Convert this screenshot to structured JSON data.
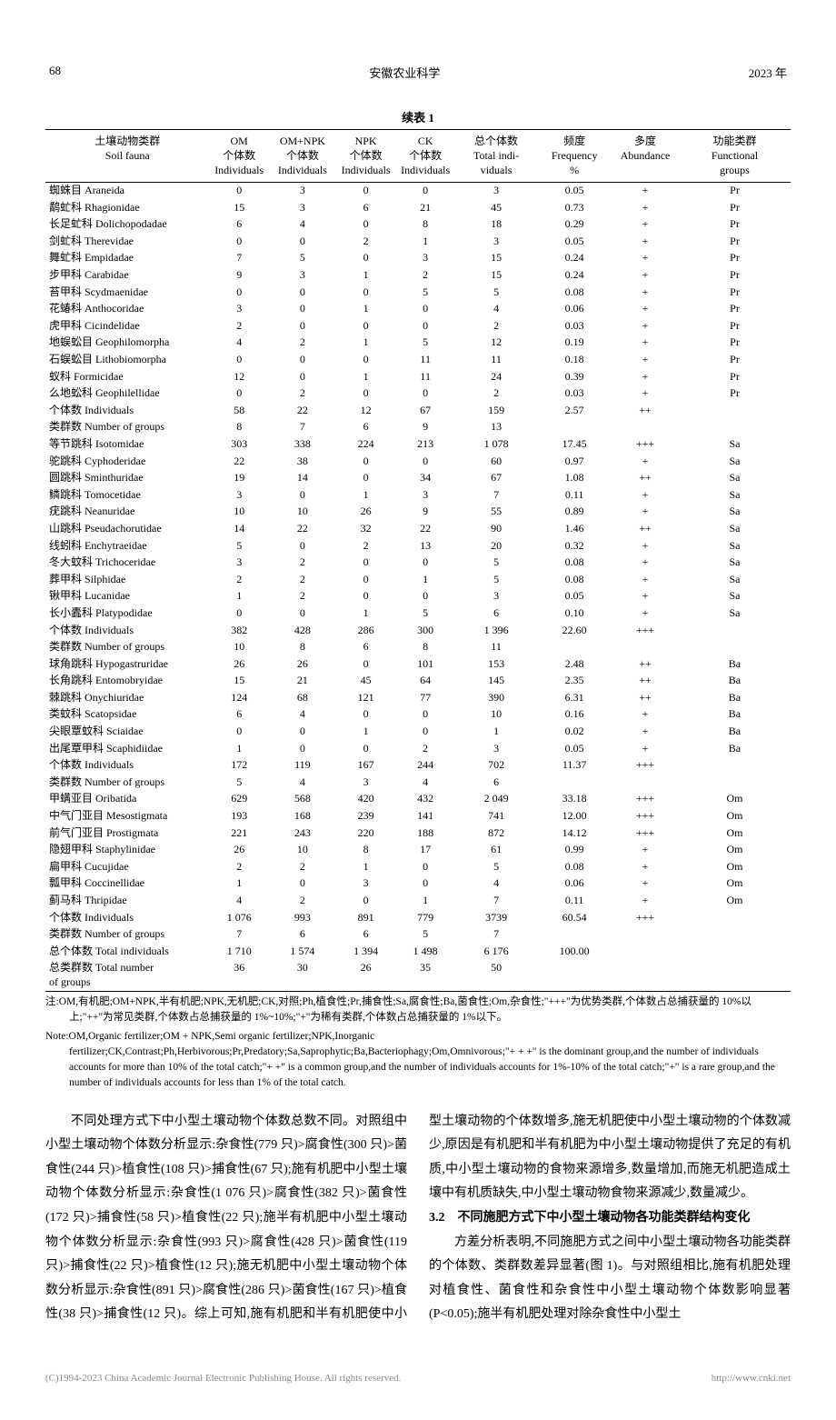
{
  "header": {
    "page_number": "68",
    "journal": "安徽农业科学",
    "year": "2023 年"
  },
  "table": {
    "title": "续表 1",
    "columns": [
      {
        "cn": "土壤动物类群",
        "en": "Soil fauna"
      },
      {
        "cn": "OM",
        "sub": "个体数",
        "en": "Individuals"
      },
      {
        "cn": "OM+NPK",
        "sub": "个体数",
        "en": "Individuals"
      },
      {
        "cn": "NPK",
        "sub": "个体数",
        "en": "Individuals"
      },
      {
        "cn": "CK",
        "sub": "个体数",
        "en": "Individuals"
      },
      {
        "cn": "总个体数",
        "en": "Total indi-",
        "en2": "viduals"
      },
      {
        "cn": "频度",
        "en": "Frequency",
        "en2": "%"
      },
      {
        "cn": "多度",
        "en": "Abundance"
      },
      {
        "cn": "功能类群",
        "en": "Functional",
        "en2": "groups"
      }
    ],
    "rows": [
      [
        "蜘蛛目 Araneida",
        "0",
        "3",
        "0",
        "0",
        "3",
        "0.05",
        "+",
        "Pr"
      ],
      [
        "鹬虻科 Rhagionidae",
        "15",
        "3",
        "6",
        "21",
        "45",
        "0.73",
        "+",
        "Pr"
      ],
      [
        "长足虻科 Dolichopodadae",
        "6",
        "4",
        "0",
        "8",
        "18",
        "0.29",
        "+",
        "Pr"
      ],
      [
        "剑虻科 Therevidae",
        "0",
        "0",
        "2",
        "1",
        "3",
        "0.05",
        "+",
        "Pr"
      ],
      [
        "舞虻科 Empidadae",
        "7",
        "5",
        "0",
        "3",
        "15",
        "0.24",
        "+",
        "Pr"
      ],
      [
        "步甲科 Carabidae",
        "9",
        "3",
        "1",
        "2",
        "15",
        "0.24",
        "+",
        "Pr"
      ],
      [
        "苔甲科 Scydmaenidae",
        "0",
        "0",
        "0",
        "5",
        "5",
        "0.08",
        "+",
        "Pr"
      ],
      [
        "花蝽科 Anthocoridae",
        "3",
        "0",
        "1",
        "0",
        "4",
        "0.06",
        "+",
        "Pr"
      ],
      [
        "虎甲科 Cicindelidae",
        "2",
        "0",
        "0",
        "0",
        "2",
        "0.03",
        "+",
        "Pr"
      ],
      [
        "地蜈蚣目 Geophilomorpha",
        "4",
        "2",
        "1",
        "5",
        "12",
        "0.19",
        "+",
        "Pr"
      ],
      [
        "石蜈蚣目 Lithobiomorpha",
        "0",
        "0",
        "0",
        "11",
        "11",
        "0.18",
        "+",
        "Pr"
      ],
      [
        "蚁科 Formicidae",
        "12",
        "0",
        "1",
        "11",
        "24",
        "0.39",
        "+",
        "Pr"
      ],
      [
        "么地蚣科 Geophilellidae",
        "0",
        "2",
        "0",
        "0",
        "2",
        "0.03",
        "+",
        "Pr"
      ],
      [
        "个体数 Individuals",
        "58",
        "22",
        "12",
        "67",
        "159",
        "2.57",
        "++",
        ""
      ],
      [
        "类群数 Number of groups",
        "8",
        "7",
        "6",
        "9",
        "13",
        "",
        "",
        ""
      ],
      [
        "等节跳科 Isotomidae",
        "303",
        "338",
        "224",
        "213",
        "1 078",
        "17.45",
        "+++",
        "Sa"
      ],
      [
        "驼跳科 Cyphoderidae",
        "22",
        "38",
        "0",
        "0",
        "60",
        "0.97",
        "+",
        "Sa"
      ],
      [
        "圆跳科 Sminthuridae",
        "19",
        "14",
        "0",
        "34",
        "67",
        "1.08",
        "++",
        "Sa"
      ],
      [
        "鳞跳科 Tomocetidae",
        "3",
        "0",
        "1",
        "3",
        "7",
        "0.11",
        "+",
        "Sa"
      ],
      [
        "疣跳科 Neanuridae",
        "10",
        "10",
        "26",
        "9",
        "55",
        "0.89",
        "+",
        "Sa"
      ],
      [
        "山跳科 Pseudachorutidae",
        "14",
        "22",
        "32",
        "22",
        "90",
        "1.46",
        "++",
        "Sa"
      ],
      [
        "线蚓科 Enchytraeidae",
        "5",
        "0",
        "2",
        "13",
        "20",
        "0.32",
        "+",
        "Sa"
      ],
      [
        "冬大蚊科 Trichoceridae",
        "3",
        "2",
        "0",
        "0",
        "5",
        "0.08",
        "+",
        "Sa"
      ],
      [
        "葬甲科 Silphidae",
        "2",
        "2",
        "0",
        "1",
        "5",
        "0.08",
        "+",
        "Sa"
      ],
      [
        "锹甲科 Lucanidae",
        "1",
        "2",
        "0",
        "0",
        "3",
        "0.05",
        "+",
        "Sa"
      ],
      [
        "长小蠹科 Platypodidae",
        "0",
        "0",
        "1",
        "5",
        "6",
        "0.10",
        "+",
        "Sa"
      ],
      [
        "个体数 Individuals",
        "382",
        "428",
        "286",
        "300",
        "1 396",
        "22.60",
        "+++",
        ""
      ],
      [
        "类群数 Number of groups",
        "10",
        "8",
        "6",
        "8",
        "11",
        "",
        "",
        ""
      ],
      [
        "球角跳科 Hypogastruridae",
        "26",
        "26",
        "0",
        "101",
        "153",
        "2.48",
        "++",
        "Ba"
      ],
      [
        "长角跳科 Entomobryidae",
        "15",
        "21",
        "45",
        "64",
        "145",
        "2.35",
        "++",
        "Ba"
      ],
      [
        "棘跳科 Onychiuridae",
        "124",
        "68",
        "121",
        "77",
        "390",
        "6.31",
        "++",
        "Ba"
      ],
      [
        "类蚊科 Scatopsidae",
        "6",
        "4",
        "0",
        "0",
        "10",
        "0.16",
        "+",
        "Ba"
      ],
      [
        "尖眼覃蚊科 Sciaidae",
        "0",
        "0",
        "1",
        "0",
        "1",
        "0.02",
        "+",
        "Ba"
      ],
      [
        "出尾覃甲科 Scaphidiidae",
        "1",
        "0",
        "0",
        "2",
        "3",
        "0.05",
        "+",
        "Ba"
      ],
      [
        "个体数 Individuals",
        "172",
        "119",
        "167",
        "244",
        "702",
        "11.37",
        "+++",
        ""
      ],
      [
        "类群数 Number of groups",
        "5",
        "4",
        "3",
        "4",
        "6",
        "",
        "",
        ""
      ],
      [
        "甲螨亚目 Oribatida",
        "629",
        "568",
        "420",
        "432",
        "2 049",
        "33.18",
        "+++",
        "Om"
      ],
      [
        "中气门亚目 Mesostigmata",
        "193",
        "168",
        "239",
        "141",
        "741",
        "12.00",
        "+++",
        "Om"
      ],
      [
        "前气门亚目 Prostigmata",
        "221",
        "243",
        "220",
        "188",
        "872",
        "14.12",
        "+++",
        "Om"
      ],
      [
        "隐翅甲科 Staphylinidae",
        "26",
        "10",
        "8",
        "17",
        "61",
        "0.99",
        "+",
        "Om"
      ],
      [
        "扁甲科 Cucujidae",
        "2",
        "2",
        "1",
        "0",
        "5",
        "0.08",
        "+",
        "Om"
      ],
      [
        "瓢甲科 Coccinellidae",
        "1",
        "0",
        "3",
        "0",
        "4",
        "0.06",
        "+",
        "Om"
      ],
      [
        "蓟马科 Thripidae",
        "4",
        "2",
        "0",
        "1",
        "7",
        "0.11",
        "+",
        "Om"
      ],
      [
        "个体数 Individuals",
        "1 076",
        "993",
        "891",
        "779",
        "3739",
        "60.54",
        "+++",
        ""
      ],
      [
        "类群数 Number of groups",
        "7",
        "6",
        "6",
        "5",
        "7",
        "",
        "",
        ""
      ],
      [
        "总个体数 Total individuals",
        "1 710",
        "1 574",
        "1 394",
        "1 498",
        "6 176",
        "100.00",
        "",
        ""
      ],
      [
        "总类群数 Total number<br>of groups",
        "36",
        "30",
        "26",
        "35",
        "50",
        "",
        "",
        ""
      ]
    ]
  },
  "notes": {
    "cn": "注:OM,有机肥;OM+NPK,半有机肥;NPK,无机肥;CK,对照;Ph,植食性;Pr,捕食性;Sa,腐食性;Ba,菌食性;Om,杂食性;\"+++\"为优势类群,个体数占总捕获量的 10%以上;\"++\"为常见类群,个体数占总捕获量的 1%~10%;\"+\"为稀有类群,个体数占总捕获量的 1%以下。",
    "en": "Note:OM,Organic fertilizer;OM + NPK,Semi organic fertilizer;NPK,Inorganic fertilizer;CK,Contrast;Ph,Herbivorous;Pr,Predatory;Sa,Saprophytic;Ba,Bacteriophagy;Om,Omnivorous;\"+ + +\" is the dominant group,and the number of individuals accounts for more than 10% of the total catch;\"+ +\" is a common group,and the number of individuals accounts for 1%-10% of the total catch;\"+\" is a rare group,and the number of individuals accounts for less than 1% of the total catch."
  },
  "body": {
    "p1": "不同处理方式下中小型土壤动物个体数总数不同。对照组中小型土壤动物个体数分析显示:杂食性(779 只)>腐食性(300 只)>菌食性(244 只)>植食性(108 只)>捕食性(67 只);施有机肥中小型土壤动物个体数分析显示:杂食性(1 076 只)>腐食性(382 只)>菌食性(172 只)>捕食性(58 只)>植食性(22 只);施半有机肥中小型土壤动物个体数分析显示:杂食性(993 只)>腐食性(428 只)>菌食性(119 只)>捕食性(22 只)>植食性(12 只);施无机肥中小型土壤动物个体数分析显示:杂食性(891 只)>腐食性(286 只)>菌食性(167 只)>植食性(38 只)>捕食性(12 只)。综上可知,施有机肥和半有机肥使中小型土壤动物的个体数增多,施无机肥使中小型土壤动物的个体数减少,原因是有机肥和半有机肥为中小型土壤动物提供了充足的有机质,中小型土壤动物的食物来源增多,数量增加,而施无机肥造成土壤中有机质缺失,中小型土壤动物食物来源减少,数量减少。",
    "sect": "3.2　不同施肥方式下中小型土壤动物各功能类群结构变化",
    "p2": "方差分析表明,不同施肥方式之间中小型土壤动物各功能类群的个体数、类群数差异显著(图 1)。与对照组相比,施有机肥处理对植食性、菌食性和杂食性中小型土壤动物个体数影响显著(P<0.05);施半有机肥处理对除杂食性中小型土"
  },
  "footer": {
    "left": "(C)1994-2023 China Academic Journal Electronic Publishing House. All rights reserved.",
    "right": "http://www.cnki.net"
  }
}
